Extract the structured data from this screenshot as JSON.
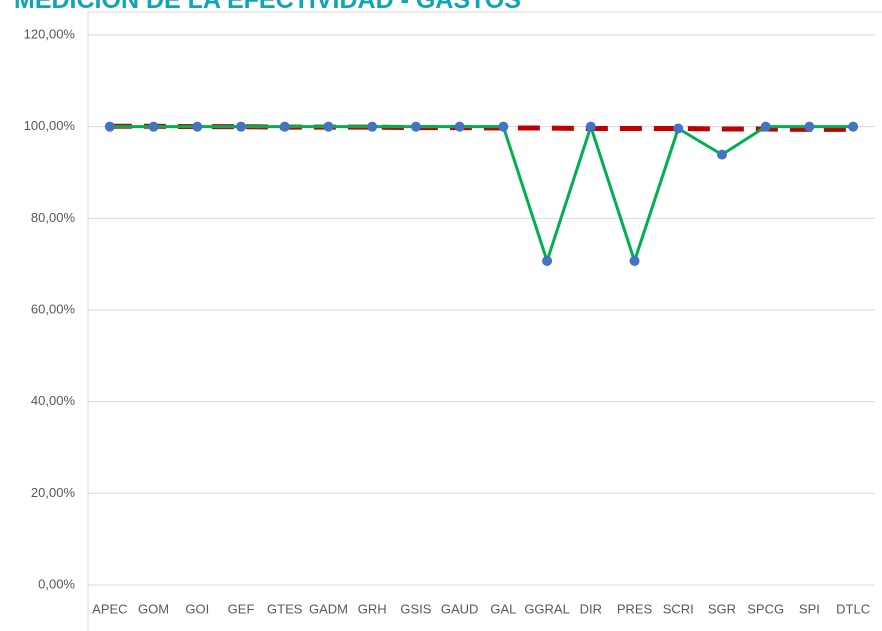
{
  "chart_data": {
    "type": "line",
    "title": "MEDICIÓN DE LA EFECTIVIDAD - GASTOS",
    "categories": [
      "APEC",
      "GOM",
      "GOI",
      "GEF",
      "GTES",
      "GADM",
      "GRH",
      "GSIS",
      "GAUD",
      "GAL",
      "GGRAL",
      "DIR",
      "PRES",
      "SCRI",
      "SGR",
      "SPCG",
      "SPI",
      "DTLC"
    ],
    "series": [
      {
        "color": "#00b050",
        "marker_color": "#4472c4",
        "values": [
          100,
          100,
          100,
          100,
          100,
          100,
          100,
          100,
          100,
          100,
          70.7,
          100,
          70.7,
          99.6,
          93.9,
          100,
          100,
          100
        ]
      },
      {
        "color": "#c00000",
        "dashed": true,
        "values": [
          100.1,
          100.1,
          100.0,
          100.0,
          99.9,
          99.9,
          99.9,
          99.8,
          99.8,
          99.7,
          99.7,
          99.6,
          99.6,
          99.6,
          99.5,
          99.5,
          99.4,
          99.4
        ]
      }
    ],
    "ylim": [
      0,
      120
    ],
    "yticks": [
      {
        "value": 0,
        "label": "0,00%"
      },
      {
        "value": 20,
        "label": "20,00%"
      },
      {
        "value": 40,
        "label": "40,00%"
      },
      {
        "value": 60,
        "label": "60,00%"
      },
      {
        "value": 80,
        "label": "80,00%"
      },
      {
        "value": 100,
        "label": "100,00%"
      },
      {
        "value": 120,
        "label": "120,00%"
      }
    ],
    "grid": true
  }
}
